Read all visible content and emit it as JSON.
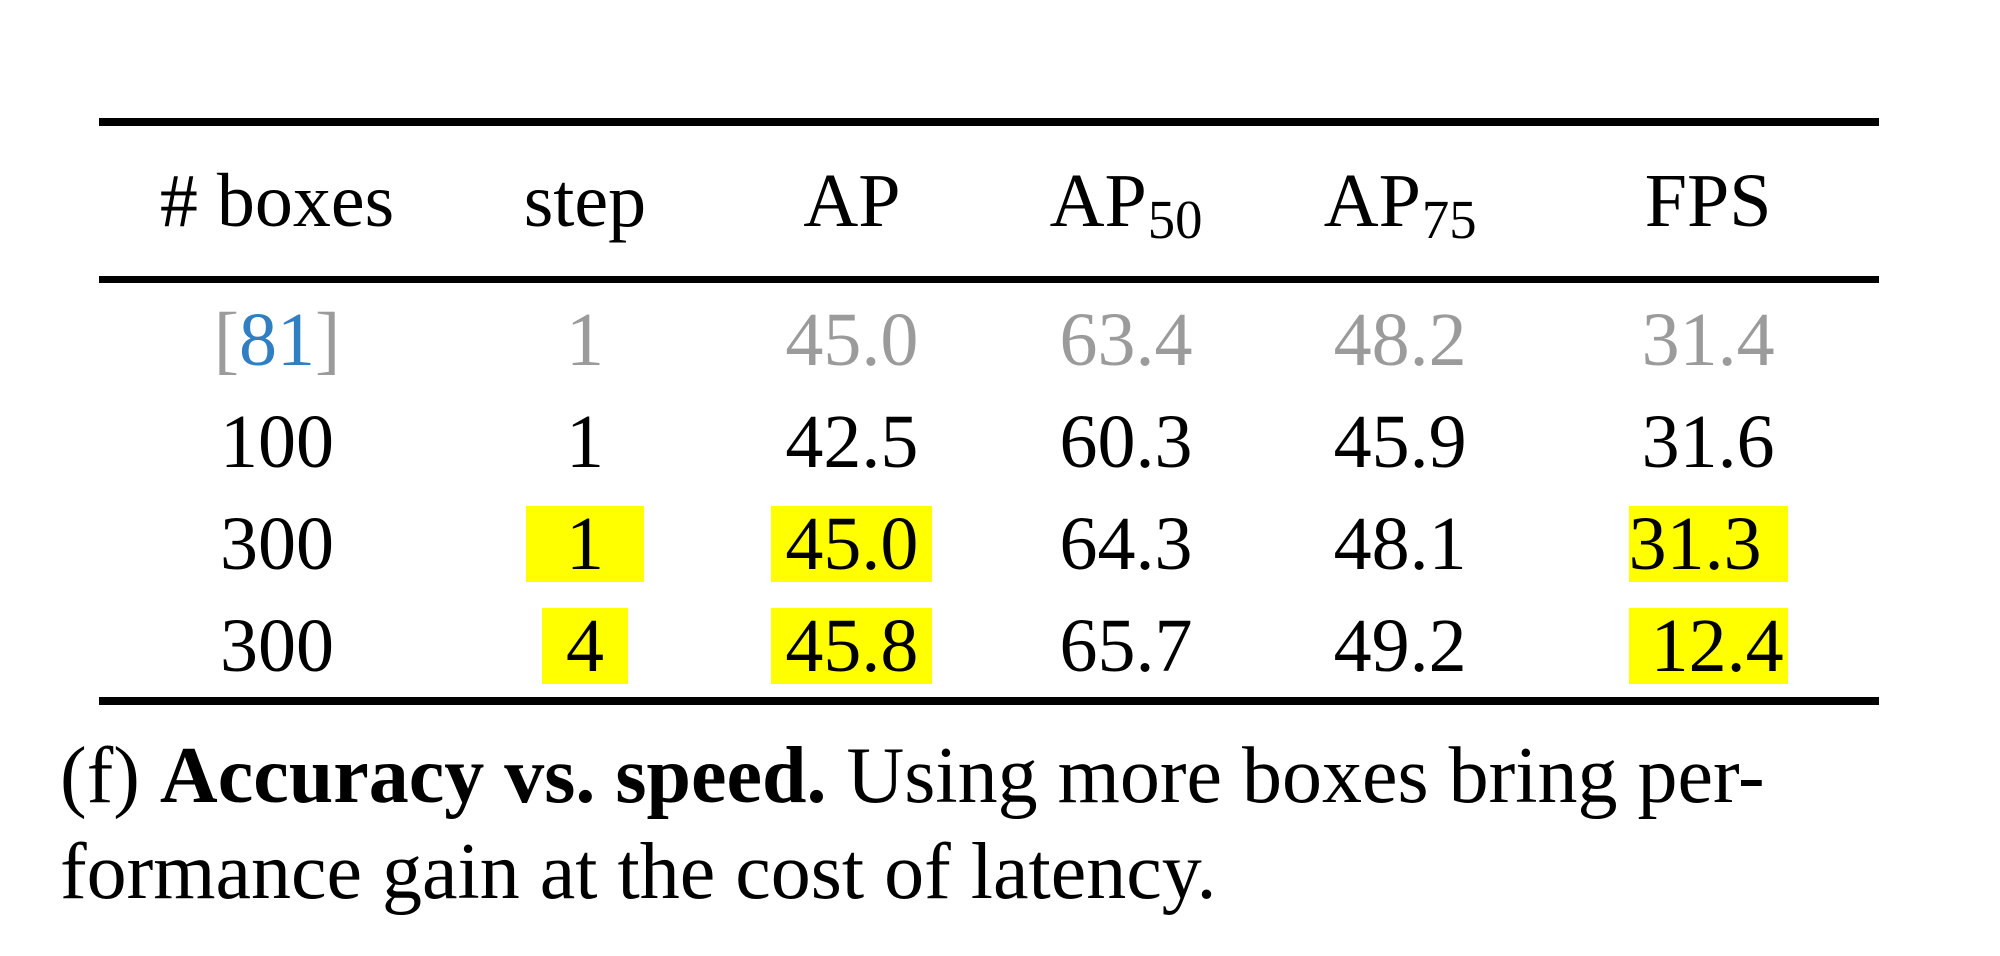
{
  "table": {
    "headers": {
      "boxes": "# boxes",
      "step": "step",
      "ap": "AP",
      "ap50_base": "AP",
      "ap50_sub": "50",
      "ap75_base": "AP",
      "ap75_sub": "75",
      "fps": "FPS"
    },
    "rows": [
      {
        "cite_open": "[",
        "cite_num": "81",
        "cite_close": "]",
        "step": "1",
        "ap": "45.0",
        "ap50": "63.4",
        "ap75": "48.2",
        "fps": "31.4"
      },
      {
        "boxes": "100",
        "step": "1",
        "ap": "42.5",
        "ap50": "60.3",
        "ap75": "45.9",
        "fps": "31.6"
      },
      {
        "boxes": "300",
        "step": "1",
        "ap": "45.0",
        "ap50": "64.3",
        "ap75": "48.1",
        "fps": "31.3"
      },
      {
        "boxes": "300",
        "step": "4",
        "ap": "45.8",
        "ap50": "65.7",
        "ap75": "49.2",
        "fps": "12.4"
      }
    ]
  },
  "caption": {
    "label": "(f)",
    "bold": "Accuracy vs. speed.",
    "text": "Using more boxes bring per-formance gain at the cost of latency."
  },
  "colors": {
    "highlight": "#ffff00",
    "reference_row_text": "#9b9b9b",
    "citation_link": "#2f7fc2"
  }
}
